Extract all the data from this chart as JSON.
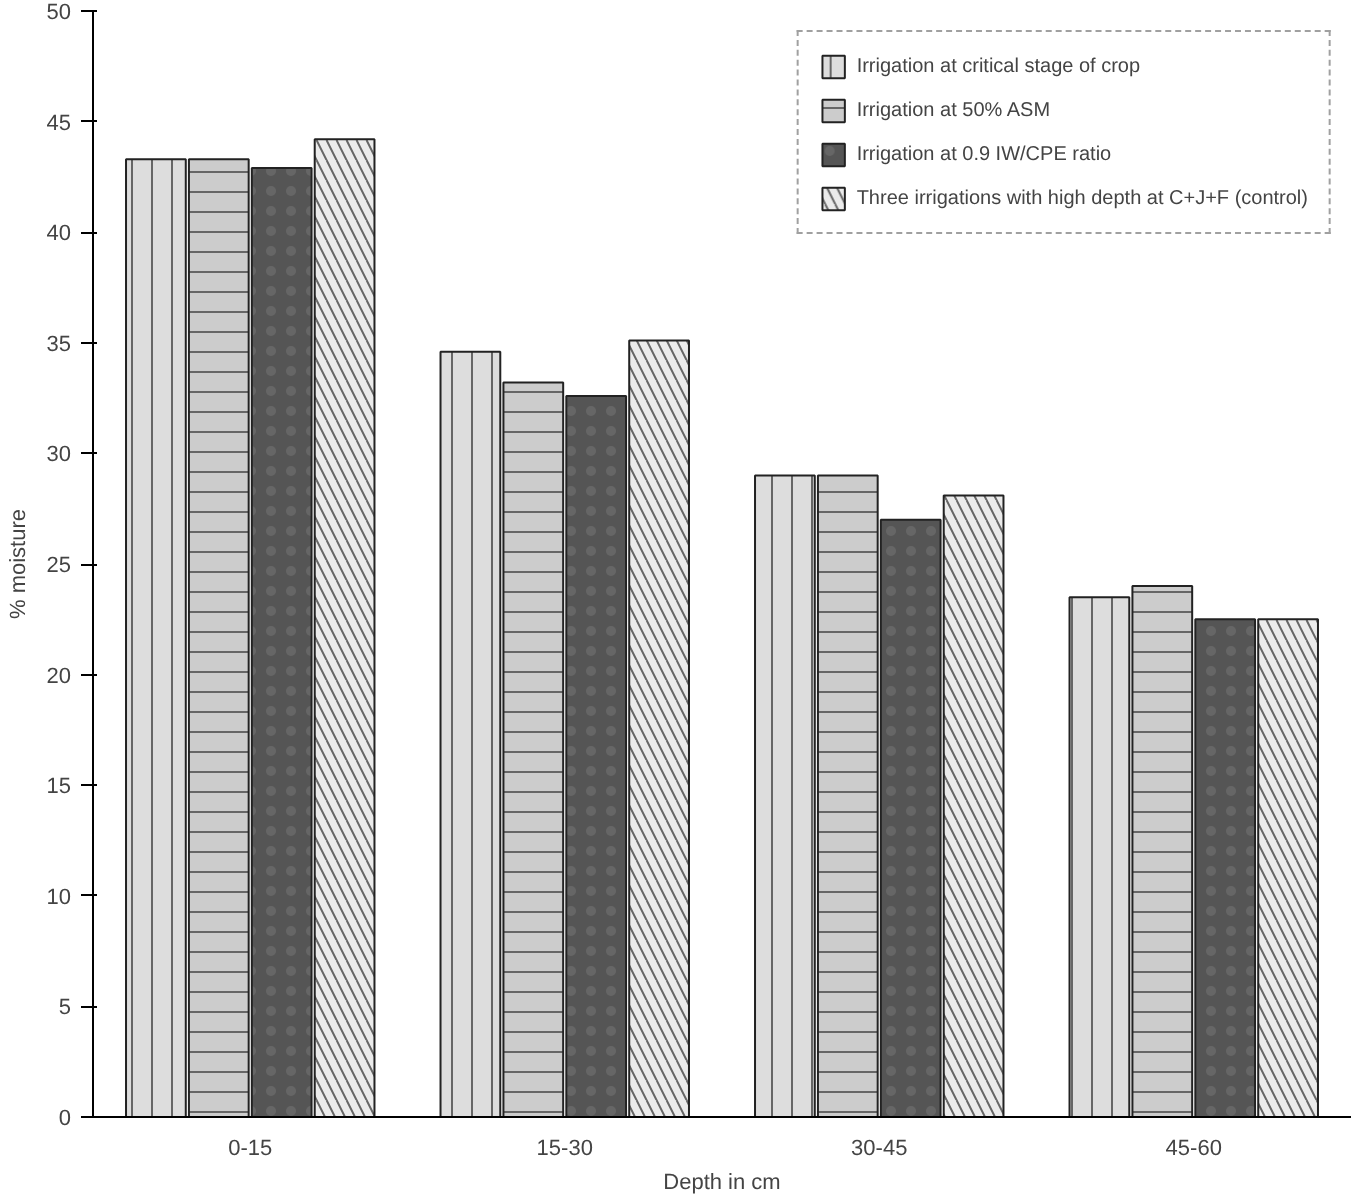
{
  "chart_data": {
    "type": "bar",
    "xlabel": "Depth in cm",
    "ylabel": "% moisture",
    "categories": [
      "0-15",
      "15-30",
      "30-45",
      "45-60"
    ],
    "series": [
      {
        "name": "Irrigation at critical stage of crop",
        "color": "#dddddd",
        "values": [
          43.3,
          34.6,
          29.0,
          23.5
        ]
      },
      {
        "name": "Irrigation at 50% ASM",
        "color": "#cccccc",
        "values": [
          43.3,
          33.2,
          29.0,
          24.0
        ]
      },
      {
        "name": "Irrigation at 0.9 IW/CPE ratio",
        "color": "#555555",
        "values": [
          42.9,
          32.6,
          27.0,
          22.5
        ]
      },
      {
        "name": "Three irrigations with high depth at C+J+F (control)",
        "color": "#ebebeb",
        "values": [
          44.2,
          35.1,
          28.1,
          22.5
        ]
      }
    ],
    "ylim": [
      0,
      50
    ],
    "yticks": [
      0,
      5,
      10,
      15,
      20,
      25,
      30,
      35,
      40,
      45,
      50
    ],
    "grid": false,
    "legend": "top right"
  }
}
